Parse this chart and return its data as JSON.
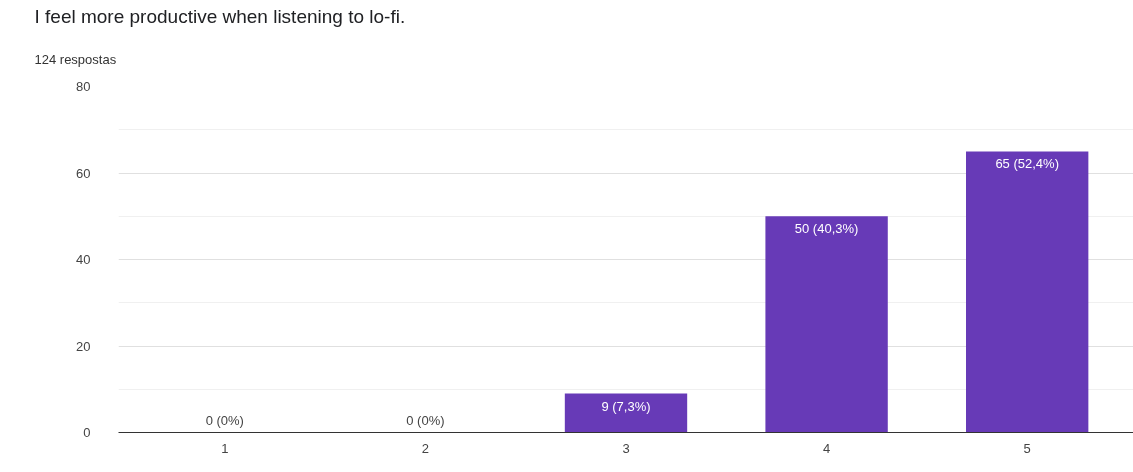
{
  "chart_data": {
    "type": "bar",
    "title": "I feel more productive when listening to lo-fi.",
    "subtitle": "124 respostas",
    "categories": [
      "1",
      "2",
      "3",
      "4",
      "5"
    ],
    "values": [
      0,
      0,
      9,
      50,
      65
    ],
    "value_labels": [
      "0 (0%)",
      "0 (0%)",
      "9 (7,3%)",
      "50 (40,3%)",
      "65 (52,4%)"
    ],
    "color": "#673ab7",
    "ylim": [
      0,
      80
    ],
    "yticks": [
      0,
      20,
      40,
      60,
      80
    ],
    "grid": "y"
  }
}
